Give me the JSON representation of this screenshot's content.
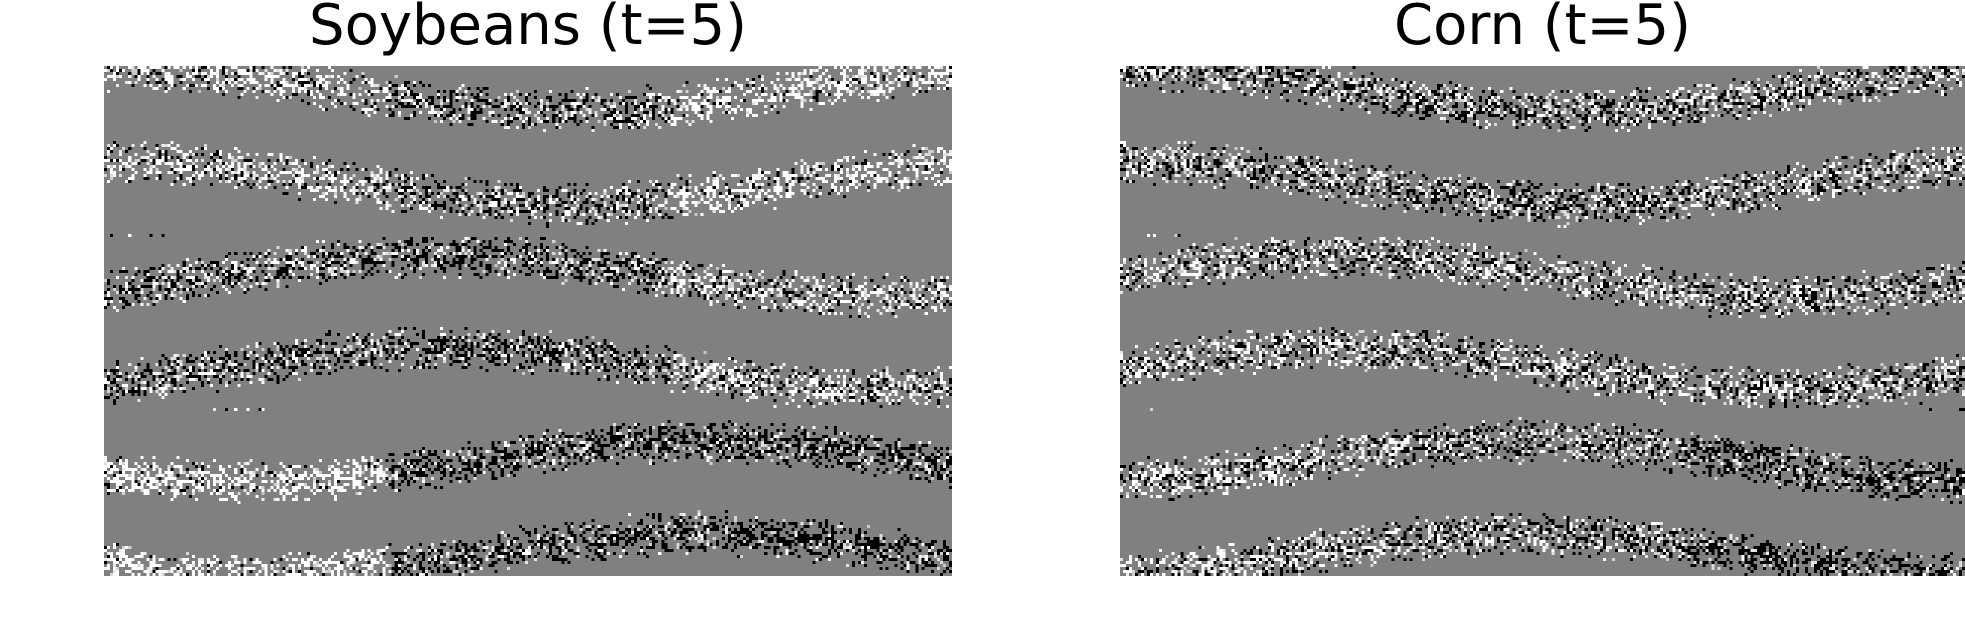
{
  "figure": {
    "panels": [
      {
        "title": "Soybeans (t=5)"
      },
      {
        "title": "Corn (t=5)"
      }
    ],
    "colors": {
      "background": "#ffffff",
      "map_base": "#808080",
      "map_low": "#000000",
      "map_high": "#ffffff"
    },
    "colormap": "grayscale"
  }
}
